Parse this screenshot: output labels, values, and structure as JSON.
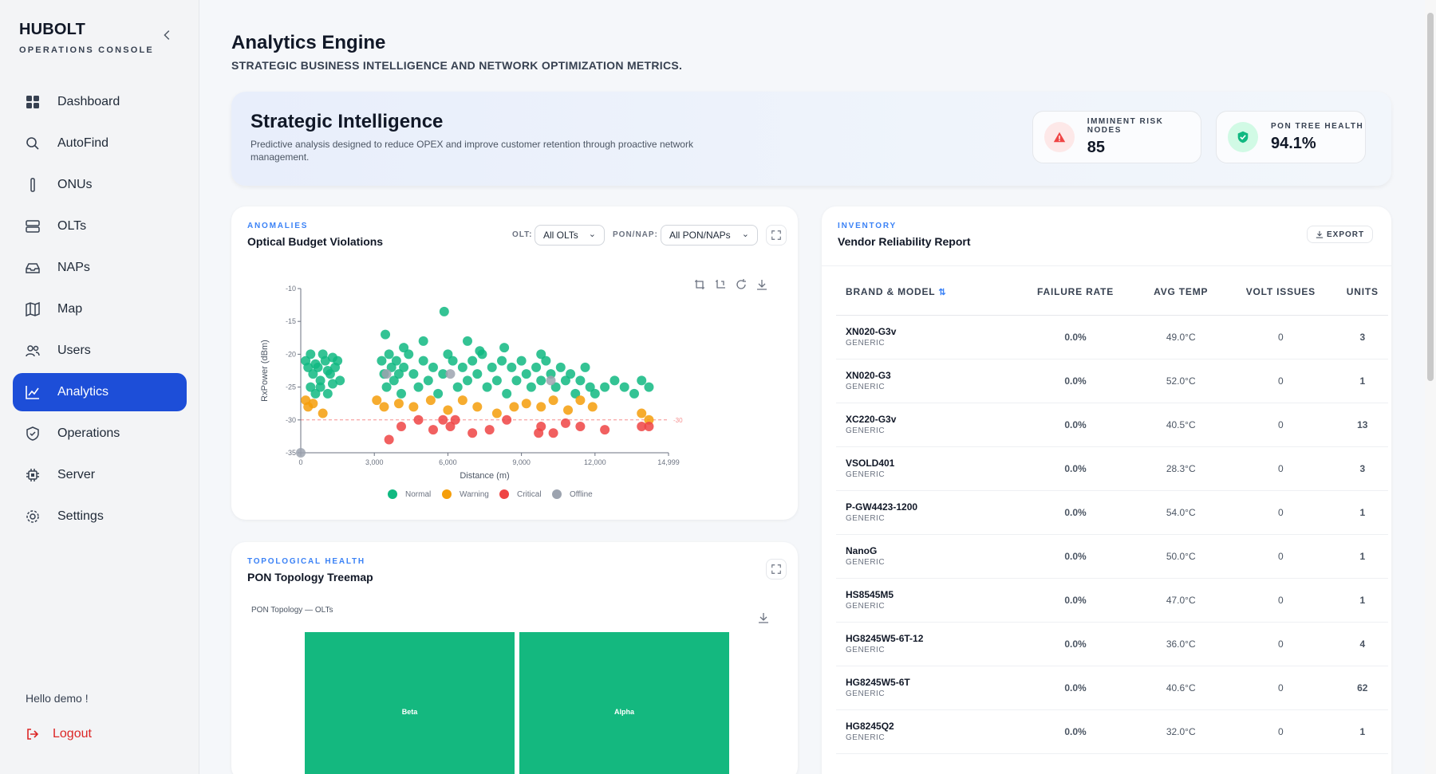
{
  "brand": {
    "name": "HUBOLT",
    "subtitle": "OPERATIONS CONSOLE"
  },
  "nav": [
    {
      "label": "Dashboard",
      "icon": "dashboard-icon"
    },
    {
      "label": "AutoFind",
      "icon": "search-icon"
    },
    {
      "label": "ONUs",
      "icon": "onu-icon"
    },
    {
      "label": "OLTs",
      "icon": "server-rack-icon"
    },
    {
      "label": "NAPs",
      "icon": "nap-icon"
    },
    {
      "label": "Map",
      "icon": "map-icon"
    },
    {
      "label": "Users",
      "icon": "users-icon"
    },
    {
      "label": "Analytics",
      "icon": "chart-icon",
      "active": true
    },
    {
      "label": "Operations",
      "icon": "shield-icon"
    },
    {
      "label": "Server",
      "icon": "chip-icon"
    },
    {
      "label": "Settings",
      "icon": "gear-icon"
    }
  ],
  "user": {
    "greeting": "Hello demo !",
    "logout": "Logout"
  },
  "page": {
    "title": "Analytics Engine",
    "subtitle": "STRATEGIC BUSINESS INTELLIGENCE AND NETWORK OPTIMIZATION METRICS."
  },
  "hero": {
    "title": "Strategic Intelligence",
    "description": "Predictive analysis designed to reduce OPEX and improve customer retention through proactive network management.",
    "kpis": [
      {
        "label": "IMMINENT RISK NODES",
        "value": "85",
        "icon": "alert-icon",
        "color": "#ef4444"
      },
      {
        "label": "PON TREE HEALTH",
        "value": "94.1%",
        "icon": "shield-check-icon",
        "color": "#10b981"
      }
    ]
  },
  "anomalies": {
    "eyebrow": "ANOMALIES",
    "title": "Optical Budget Violations",
    "olt_label": "OLT:",
    "olt_value": "All OLTs",
    "pon_label": "PON/NAP:",
    "pon_value": "All PON/NAPs"
  },
  "topology": {
    "eyebrow": "TOPOLOGICAL HEALTH",
    "title": "PON Topology Treemap",
    "chart_title": "PON Topology — OLTs",
    "blocks": [
      "Beta",
      "Alpha"
    ]
  },
  "inventory": {
    "eyebrow": "INVENTORY",
    "title": "Vendor Reliability Report",
    "export": "EXPORT",
    "columns": [
      "BRAND & MODEL",
      "FAILURE RATE",
      "AVG TEMP",
      "VOLT ISSUES",
      "UNITS"
    ],
    "rows": [
      {
        "model": "XN020-G3v",
        "brand": "GENERIC",
        "rate": "0.0%",
        "temp": "49.0°C",
        "volt": "0",
        "units": "3"
      },
      {
        "model": "XN020-G3",
        "brand": "GENERIC",
        "rate": "0.0%",
        "temp": "52.0°C",
        "volt": "0",
        "units": "1"
      },
      {
        "model": "XC220-G3v",
        "brand": "GENERIC",
        "rate": "0.0%",
        "temp": "40.5°C",
        "volt": "0",
        "units": "13"
      },
      {
        "model": "VSOLD401",
        "brand": "GENERIC",
        "rate": "0.0%",
        "temp": "28.3°C",
        "volt": "0",
        "units": "3"
      },
      {
        "model": "P-GW4423-1200",
        "brand": "GENERIC",
        "rate": "0.0%",
        "temp": "54.0°C",
        "volt": "0",
        "units": "1"
      },
      {
        "model": "NanoG",
        "brand": "GENERIC",
        "rate": "0.0%",
        "temp": "50.0°C",
        "volt": "0",
        "units": "1"
      },
      {
        "model": "HS8545M5",
        "brand": "GENERIC",
        "rate": "0.0%",
        "temp": "47.0°C",
        "volt": "0",
        "units": "1"
      },
      {
        "model": "HG8245W5-6T-12",
        "brand": "GENERIC",
        "rate": "0.0%",
        "temp": "36.0°C",
        "volt": "0",
        "units": "4"
      },
      {
        "model": "HG8245W5-6T",
        "brand": "GENERIC",
        "rate": "0.0%",
        "temp": "40.6°C",
        "volt": "0",
        "units": "62"
      },
      {
        "model": "HG8245Q2",
        "brand": "GENERIC",
        "rate": "0.0%",
        "temp": "32.0°C",
        "volt": "0",
        "units": "1"
      }
    ]
  },
  "chart_data": {
    "type": "scatter",
    "xlabel": "Distance (m)",
    "ylabel": "RxPower (dBm)",
    "xlim": [
      0,
      14999
    ],
    "ylim": [
      -35,
      -10
    ],
    "x_ticks": [
      "0",
      "3,000",
      "6,000",
      "9,000",
      "12,000",
      "14,999"
    ],
    "y_ticks": [
      "-10",
      "-15",
      "-20",
      "-25",
      "-30",
      "-35"
    ],
    "threshold": {
      "value": -30,
      "label": "-30"
    },
    "legend": [
      "Normal",
      "Warning",
      "Critical",
      "Offline"
    ],
    "colors": {
      "Normal": "#10b981",
      "Warning": "#f59e0b",
      "Critical": "#ef4444",
      "Offline": "#9ca3af"
    },
    "series": [
      {
        "name": "Normal",
        "points": [
          [
            200,
            -21
          ],
          [
            300,
            -22
          ],
          [
            400,
            -20
          ],
          [
            500,
            -23
          ],
          [
            600,
            -21.5
          ],
          [
            700,
            -22
          ],
          [
            800,
            -24
          ],
          [
            900,
            -20
          ],
          [
            1000,
            -21
          ],
          [
            1100,
            -22.5
          ],
          [
            1200,
            -23
          ],
          [
            1300,
            -20.5
          ],
          [
            1400,
            -22
          ],
          [
            1500,
            -21
          ],
          [
            1600,
            -24
          ],
          [
            400,
            -25
          ],
          [
            600,
            -26
          ],
          [
            800,
            -25
          ],
          [
            1100,
            -26
          ],
          [
            1300,
            -24.5
          ],
          [
            3300,
            -21
          ],
          [
            3400,
            -23
          ],
          [
            3500,
            -25
          ],
          [
            3600,
            -20
          ],
          [
            3700,
            -22
          ],
          [
            3800,
            -24
          ],
          [
            3900,
            -21
          ],
          [
            4000,
            -23
          ],
          [
            4100,
            -26
          ],
          [
            4200,
            -22
          ],
          [
            4400,
            -20
          ],
          [
            4600,
            -23
          ],
          [
            4800,
            -25
          ],
          [
            5000,
            -21
          ],
          [
            5200,
            -24
          ],
          [
            5400,
            -22
          ],
          [
            5600,
            -26
          ],
          [
            5800,
            -23
          ],
          [
            6000,
            -20
          ],
          [
            6200,
            -21
          ],
          [
            6400,
            -25
          ],
          [
            6600,
            -22
          ],
          [
            6800,
            -24
          ],
          [
            7000,
            -21
          ],
          [
            7200,
            -23
          ],
          [
            7400,
            -20
          ],
          [
            7600,
            -25
          ],
          [
            7800,
            -22
          ],
          [
            8000,
            -24
          ],
          [
            8200,
            -21
          ],
          [
            8400,
            -26
          ],
          [
            8600,
            -22
          ],
          [
            8800,
            -24
          ],
          [
            9000,
            -21
          ],
          [
            9200,
            -23
          ],
          [
            9400,
            -25
          ],
          [
            9600,
            -22
          ],
          [
            9800,
            -24
          ],
          [
            10000,
            -21
          ],
          [
            10200,
            -23
          ],
          [
            10400,
            -25
          ],
          [
            10600,
            -22
          ],
          [
            10800,
            -24
          ],
          [
            11000,
            -23
          ],
          [
            11200,
            -26
          ],
          [
            11400,
            -24
          ],
          [
            11600,
            -22
          ],
          [
            11800,
            -25
          ],
          [
            12000,
            -26
          ],
          [
            12400,
            -25
          ],
          [
            12800,
            -24
          ],
          [
            13200,
            -25
          ],
          [
            13600,
            -26
          ],
          [
            13900,
            -24
          ],
          [
            14200,
            -25
          ],
          [
            5850,
            -13.5
          ],
          [
            3450,
            -17
          ],
          [
            4200,
            -19
          ],
          [
            5000,
            -18
          ],
          [
            6800,
            -18
          ],
          [
            9800,
            -20
          ],
          [
            8300,
            -19
          ],
          [
            7300,
            -19.5
          ]
        ]
      },
      {
        "name": "Warning",
        "points": [
          [
            200,
            -27
          ],
          [
            300,
            -28
          ],
          [
            500,
            -27.5
          ],
          [
            900,
            -29
          ],
          [
            3100,
            -27
          ],
          [
            3400,
            -28
          ],
          [
            4000,
            -27.5
          ],
          [
            4600,
            -28
          ],
          [
            5300,
            -27
          ],
          [
            6000,
            -28.5
          ],
          [
            6600,
            -27
          ],
          [
            7200,
            -28
          ],
          [
            8000,
            -29
          ],
          [
            8700,
            -28
          ],
          [
            9200,
            -27.5
          ],
          [
            9800,
            -28
          ],
          [
            10300,
            -27
          ],
          [
            10900,
            -28.5
          ],
          [
            11400,
            -27
          ],
          [
            11900,
            -28
          ],
          [
            13900,
            -29
          ],
          [
            14200,
            -30
          ]
        ]
      },
      {
        "name": "Critical",
        "points": [
          [
            4100,
            -31
          ],
          [
            4800,
            -30
          ],
          [
            5400,
            -31.5
          ],
          [
            5800,
            -30
          ],
          [
            6100,
            -31
          ],
          [
            7000,
            -32
          ],
          [
            7700,
            -31.5
          ],
          [
            8400,
            -30
          ],
          [
            9800,
            -31
          ],
          [
            10300,
            -32
          ],
          [
            10800,
            -30.5
          ],
          [
            11400,
            -31
          ],
          [
            12400,
            -31.5
          ],
          [
            13900,
            -31
          ],
          [
            14200,
            -31
          ],
          [
            3600,
            -33
          ],
          [
            6300,
            -30
          ],
          [
            9700,
            -32
          ]
        ]
      },
      {
        "name": "Offline",
        "points": [
          [
            0,
            -35
          ],
          [
            3500,
            -23
          ],
          [
            6100,
            -23
          ],
          [
            10200,
            -24
          ]
        ]
      }
    ]
  }
}
